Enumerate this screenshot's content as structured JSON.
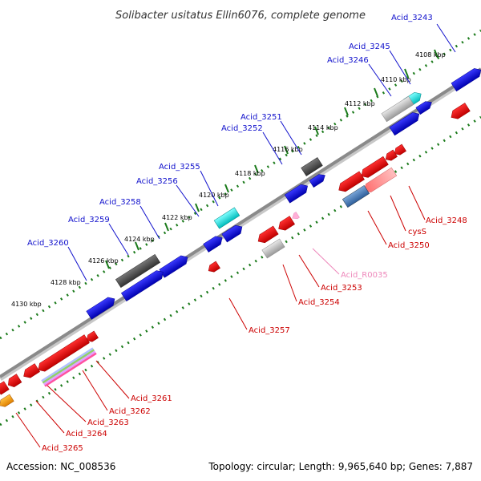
{
  "title": "Solibacter usitatus Ellin6076, complete genome",
  "footer": {
    "accession": "Accession: NC_008536",
    "summary": "Topology: circular; Length: 9,965,640 bp; Genes: 7,887"
  },
  "colors": {
    "forward_label": "#1010cc",
    "reverse_label": "#cc0000",
    "rna_label": "#ee88bb",
    "backbone": "#8a8a8a",
    "tick": "#1a7a1a"
  },
  "ticks": [
    {
      "label": "4108 kbp"
    },
    {
      "label": "4110 kbp"
    },
    {
      "label": "4112 kbp"
    },
    {
      "label": "4114 kbp"
    },
    {
      "label": "4116 kbp"
    },
    {
      "label": "4118 kbp"
    },
    {
      "label": "4120 kbp"
    },
    {
      "label": "4122 kbp"
    },
    {
      "label": "4124 kbp"
    },
    {
      "label": "4126 kbp"
    },
    {
      "label": "4128 kbp"
    },
    {
      "label": "4130 kbp"
    }
  ],
  "forward_genes": [
    {
      "name": "Acid_3243"
    },
    {
      "name": "Acid_3245"
    },
    {
      "name": "Acid_3246"
    },
    {
      "name": "Acid_3251"
    },
    {
      "name": "Acid_3252"
    },
    {
      "name": "Acid_3255"
    },
    {
      "name": "Acid_3256"
    },
    {
      "name": "Acid_3258"
    },
    {
      "name": "Acid_3259"
    },
    {
      "name": "Acid_3260"
    }
  ],
  "reverse_genes": [
    {
      "name": "Acid_3248"
    },
    {
      "name": "cysS"
    },
    {
      "name": "Acid_3250"
    },
    {
      "name": "Acid_R0035"
    },
    {
      "name": "Acid_3253"
    },
    {
      "name": "Acid_3254"
    },
    {
      "name": "Acid_3257"
    },
    {
      "name": "Acid_3261"
    },
    {
      "name": "Acid_3262"
    },
    {
      "name": "Acid_3263"
    },
    {
      "name": "Acid_3264"
    },
    {
      "name": "Acid_3265"
    }
  ]
}
